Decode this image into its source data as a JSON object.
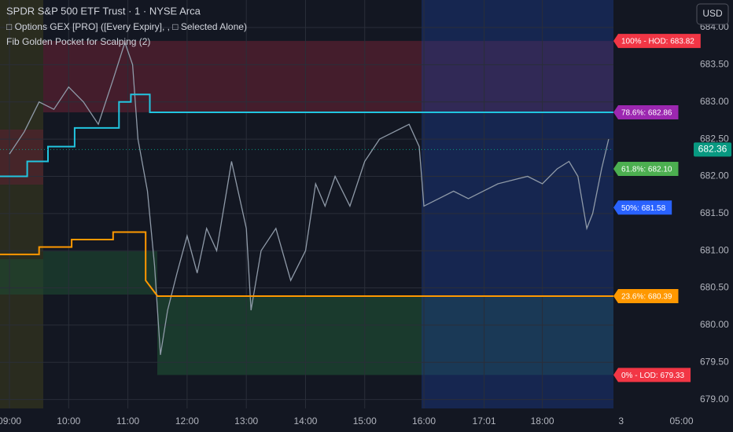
{
  "chart_data": {
    "type": "line",
    "title": "SPDR S&P 500 ETF Trust · 1 · NYSE Arca",
    "indicators": [
      "□ Options GEX [PRO] ([Every Expiry], , □ Selected Alone)",
      "Fib Golden Pocket for Scalping (2)"
    ],
    "currency": "USD",
    "last_price": 682.36,
    "xlim": [
      8.84,
      21.22
    ],
    "ylim": [
      678.88,
      684.37
    ],
    "yticks": [
      {
        "value": 684,
        "label": "684.00"
      },
      {
        "value": 683.5,
        "label": "683.50"
      },
      {
        "value": 683,
        "label": "683.00"
      },
      {
        "value": 682.5,
        "label": "682.50"
      },
      {
        "value": 682,
        "label": "682.00"
      },
      {
        "value": 681.5,
        "label": "681.50"
      },
      {
        "value": 681,
        "label": "681.00"
      },
      {
        "value": 680.5,
        "label": "680.50"
      },
      {
        "value": 680,
        "label": "680.00"
      },
      {
        "value": 679.5,
        "label": "679.50"
      },
      {
        "value": 679,
        "label": "679.00"
      }
    ],
    "xticks": [
      {
        "value": 9,
        "label": "09:00"
      },
      {
        "value": 10,
        "label": "10:00"
      },
      {
        "value": 11,
        "label": "11:00"
      },
      {
        "value": 12,
        "label": "12:00"
      },
      {
        "value": 13,
        "label": "13:00"
      },
      {
        "value": 14,
        "label": "14:00"
      },
      {
        "value": 15,
        "label": "15:00"
      },
      {
        "value": 16,
        "label": "16:00"
      },
      {
        "value": 17.0167,
        "label": "17:01"
      },
      {
        "value": 18,
        "label": "18:00"
      },
      {
        "value": 19.33,
        "label": "3"
      },
      {
        "value": 20.35,
        "label": "05:00"
      }
    ],
    "fib_levels": [
      {
        "label": "100% - HOD: 683.82",
        "value": 683.82,
        "color": "#f23645"
      },
      {
        "label": "78.6%: 682.86",
        "value": 682.86,
        "color": "#9c27b0"
      },
      {
        "label": "61.8%: 682.10",
        "value": 682.1,
        "color": "#4caf50"
      },
      {
        "label": "50%: 681.58",
        "value": 681.58,
        "color": "#2962ff"
      },
      {
        "label": "23.6%: 680.39",
        "value": 680.39,
        "color": "#ff9800"
      },
      {
        "label": "0% - LOD: 679.33",
        "value": 679.33,
        "color": "#f23645"
      }
    ],
    "series": [
      {
        "color": "#8f9aa8",
        "x": [
          9.0,
          9.25,
          9.5,
          9.75,
          10.0,
          10.25,
          10.5,
          10.75,
          10.95,
          11.08,
          11.17,
          11.33,
          11.45,
          11.55,
          11.67,
          11.83,
          12.0,
          12.17,
          12.33,
          12.5,
          12.75,
          13.0,
          13.08,
          13.25,
          13.5,
          13.75,
          14.0,
          14.17,
          14.33,
          14.5,
          14.75,
          15.0,
          15.25,
          15.5,
          15.75,
          15.92,
          16.0,
          16.25,
          16.5,
          16.75,
          17.0,
          17.25,
          17.5,
          17.75,
          18.0,
          18.25,
          18.45,
          18.6,
          18.75,
          18.85,
          19.0,
          19.12
        ],
        "values": [
          682.3,
          682.6,
          683.0,
          682.9,
          683.2,
          683.0,
          682.7,
          683.3,
          683.8,
          683.5,
          682.5,
          681.8,
          680.8,
          679.6,
          680.2,
          680.7,
          681.2,
          680.7,
          681.3,
          681.0,
          682.2,
          681.3,
          680.2,
          681.0,
          681.3,
          680.6,
          681.0,
          681.9,
          681.6,
          682.0,
          681.6,
          682.2,
          682.5,
          682.6,
          682.7,
          682.4,
          681.6,
          681.7,
          681.8,
          681.7,
          681.8,
          681.9,
          681.95,
          682.0,
          681.9,
          682.1,
          682.2,
          682.0,
          681.3,
          681.5,
          682.1,
          682.5
        ]
      },
      {
        "color": "#22c5e0",
        "x": [
          8.84,
          9.3,
          9.3,
          9.65,
          9.65,
          10.1,
          10.1,
          10.85,
          10.85,
          11.05,
          11.05,
          11.37,
          11.37,
          19.2
        ],
        "values": [
          682.0,
          682.0,
          682.2,
          682.2,
          682.4,
          682.4,
          682.65,
          682.65,
          683.0,
          683.0,
          683.1,
          683.1,
          682.86,
          682.86
        ]
      },
      {
        "color": "#ff9800",
        "x": [
          8.84,
          9.5,
          9.5,
          10.05,
          10.05,
          10.75,
          10.75,
          11.3,
          11.3,
          11.5,
          11.5,
          19.2
        ],
        "values": [
          680.95,
          680.95,
          681.05,
          681.05,
          681.15,
          681.15,
          681.25,
          681.25,
          680.6,
          680.39,
          680.39,
          680.39
        ]
      }
    ]
  }
}
